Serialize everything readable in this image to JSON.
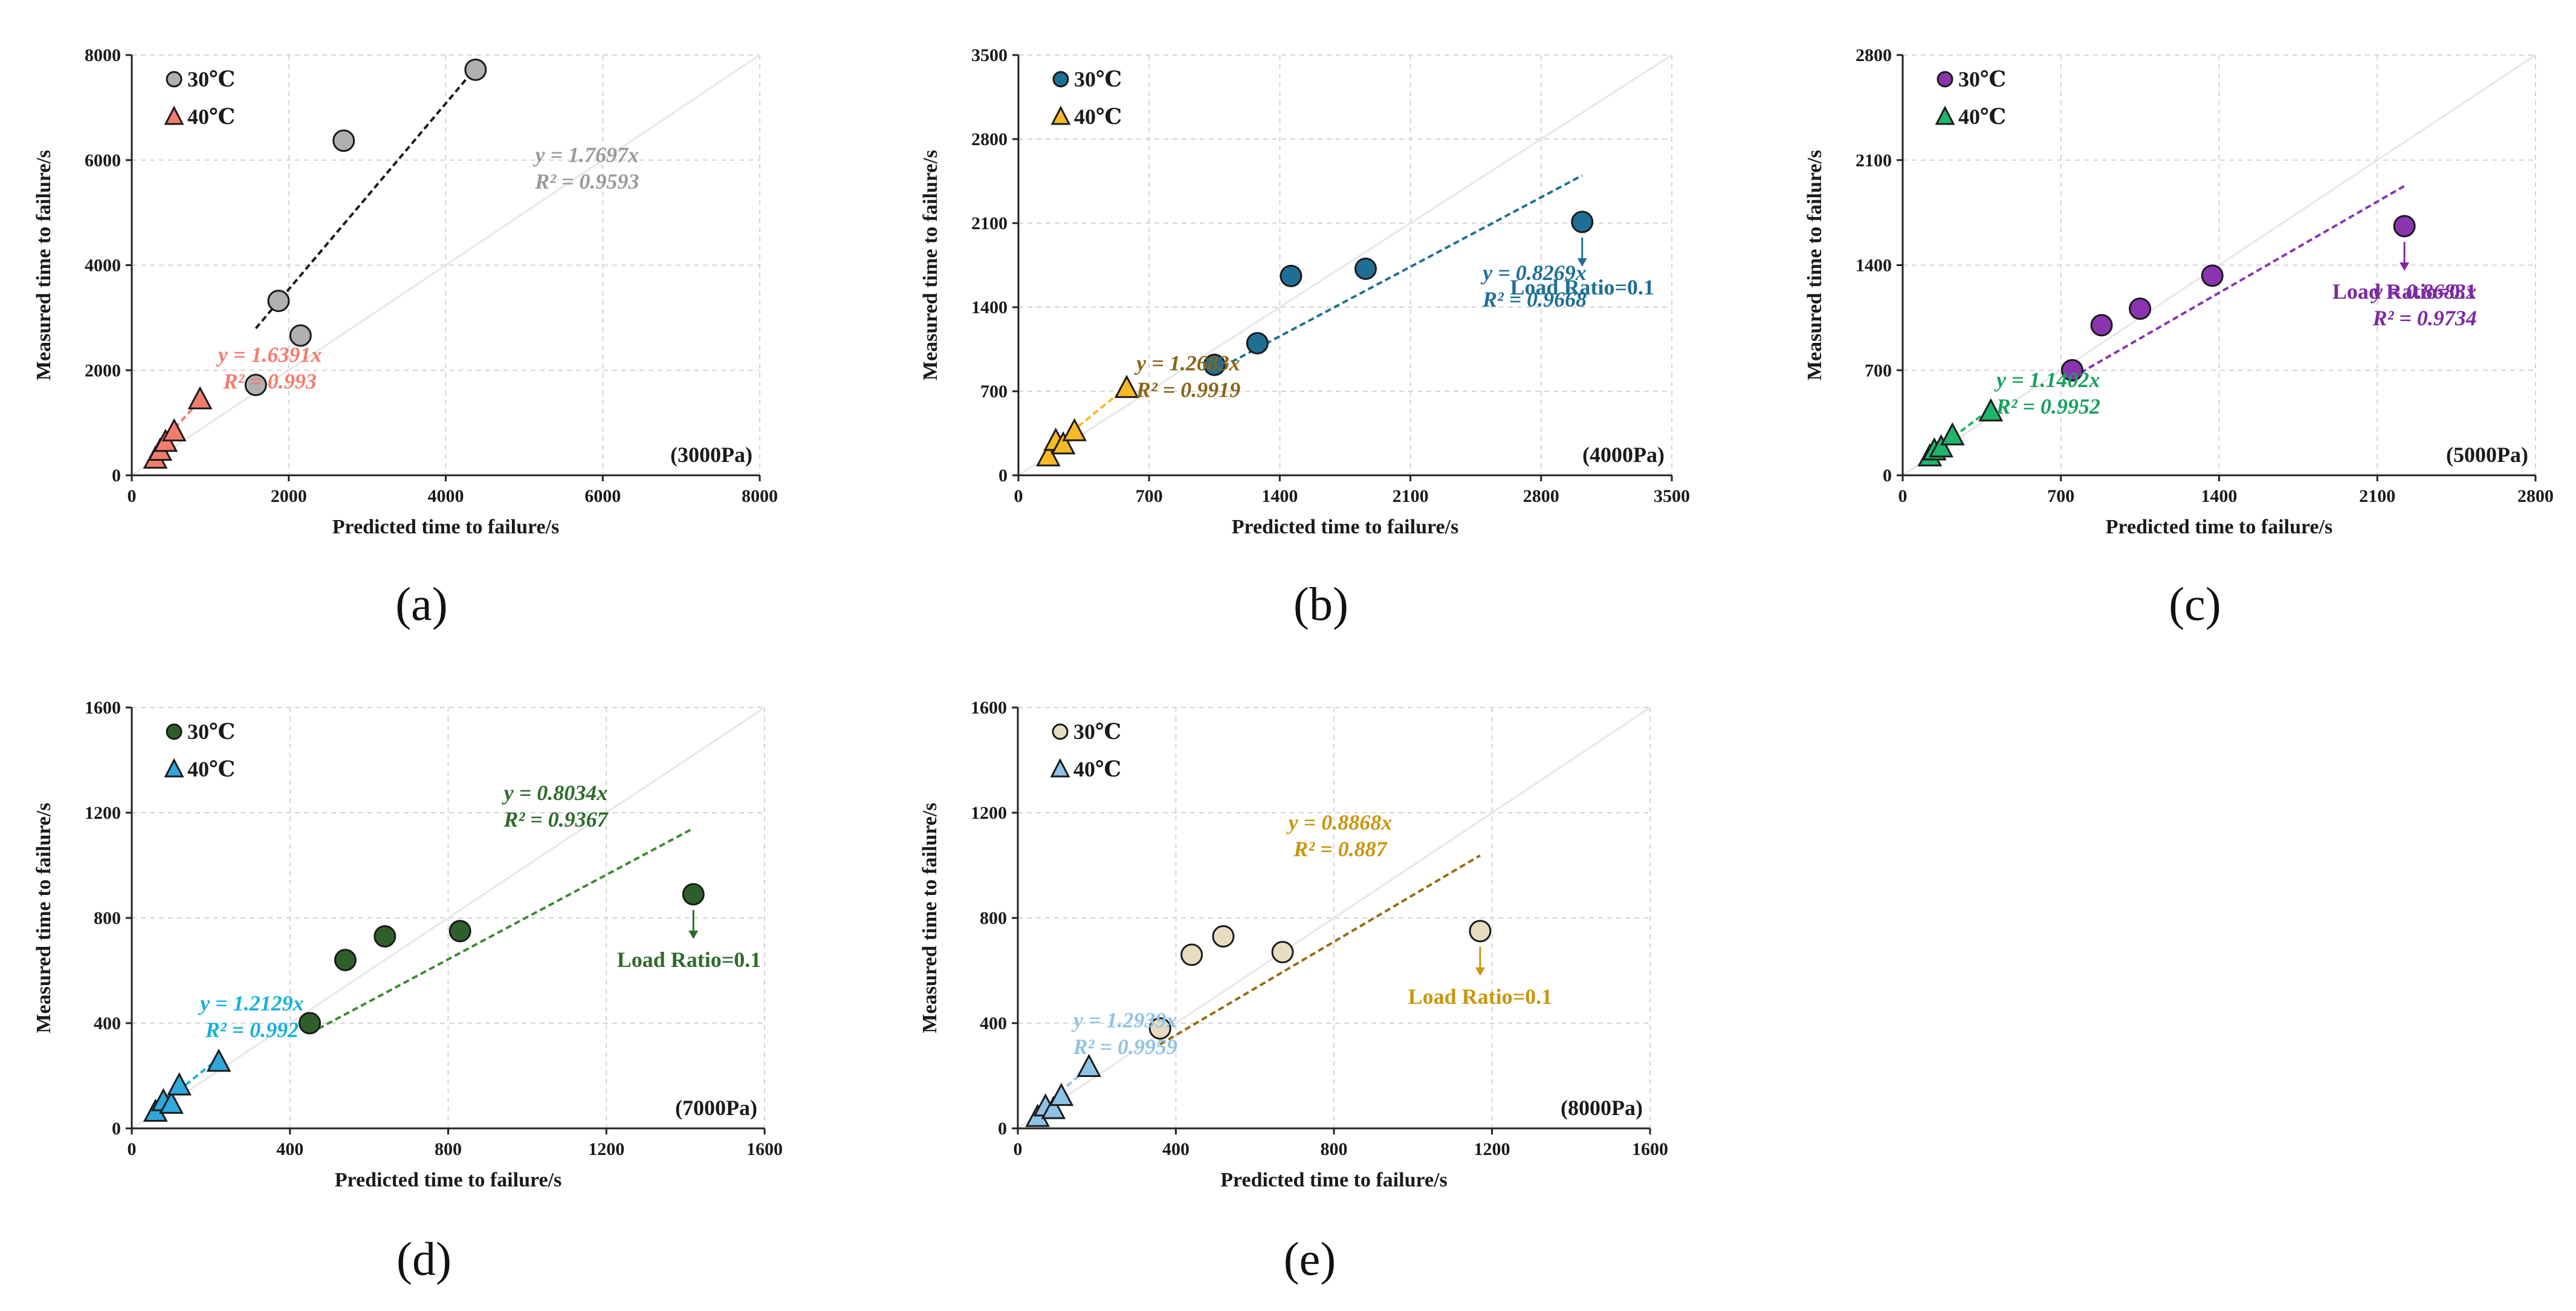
{
  "chart_data": [
    {
      "type": "scatter",
      "panel_label": "a",
      "pressure_label": "(3000Pa)",
      "xlabel": "Predicted time to failure/s",
      "ylabel": "Measured time to failure/s",
      "xlim": [
        0,
        8000
      ],
      "ylim": [
        0,
        8000
      ],
      "xticks": [
        0,
        2000,
        4000,
        6000,
        8000
      ],
      "yticks": [
        0,
        2000,
        4000,
        6000,
        8000
      ],
      "legend_position": "top-left",
      "series": [
        {
          "name": "30℃",
          "marker": "circle",
          "color": "#b0b0b0",
          "points": [
            [
              1580,
              1720
            ],
            [
              1870,
              3320
            ],
            [
              2150,
              2660
            ],
            [
              2700,
              6370
            ],
            [
              4380,
              7720
            ]
          ],
          "fit": {
            "slope": 1.7697,
            "x_range": [
              1580,
              4380
            ],
            "color": "#1a1a1a",
            "equation": "y = 1.7697x",
            "r2": "R² = 0.9593",
            "label_color": "#9a9a9a"
          }
        },
        {
          "name": "40℃",
          "marker": "triangle",
          "color": "#f47c6e",
          "points": [
            [
              300,
              300
            ],
            [
              360,
              450
            ],
            [
              430,
              620
            ],
            [
              540,
              820
            ],
            [
              870,
              1430
            ]
          ],
          "fit": {
            "slope": 1.6391,
            "x_range": [
              300,
              870
            ],
            "color": "#f47c6e",
            "equation": "y = 1.6391x",
            "r2": "R² = 0.993",
            "label_color": "#f47c6e"
          }
        }
      ]
    },
    {
      "type": "scatter",
      "panel_label": "b",
      "pressure_label": "(4000Pa)",
      "xlabel": "Predicted time to failure/s",
      "ylabel": "Measured time to failure/s",
      "xlim": [
        0,
        3500
      ],
      "ylim": [
        0,
        3500
      ],
      "xticks": [
        0,
        700,
        1400,
        2100,
        2800,
        3500
      ],
      "yticks": [
        0,
        700,
        1400,
        2100,
        2800,
        3500
      ],
      "legend_position": "top-left",
      "annotation": {
        "text": "Load Ratio=0.1",
        "x": 3020,
        "y": 2110,
        "color": "#1f6f95"
      },
      "series": [
        {
          "name": "30℃",
          "marker": "circle",
          "color": "#1f6f95",
          "points": [
            [
              1050,
              920
            ],
            [
              1280,
              1100
            ],
            [
              1460,
              1660
            ],
            [
              1860,
              1720
            ],
            [
              3020,
              2110
            ]
          ],
          "fit": {
            "slope": 0.8269,
            "x_range": [
              1050,
              3020
            ],
            "color": "#1f6f95",
            "equation": "y = 0.8269x",
            "r2": "R² = 0.9668",
            "label_color": "#1f6f95"
          }
        },
        {
          "name": "40℃",
          "marker": "triangle",
          "color": "#f7b924",
          "points": [
            [
              160,
              150
            ],
            [
              200,
              280
            ],
            [
              240,
              250
            ],
            [
              300,
              360
            ],
            [
              580,
              720
            ]
          ],
          "fit": {
            "slope": 1.2683,
            "x_range": [
              160,
              580
            ],
            "color": "#f7b924",
            "equation": "y = 1.2683x",
            "r2": "R² = 0.9919",
            "label_color": "#8a6419"
          }
        }
      ]
    },
    {
      "type": "scatter",
      "panel_label": "c",
      "pressure_label": "(5000Pa)",
      "xlabel": "Predicted time to failure/s",
      "ylabel": "Measured time to failure/s",
      "xlim": [
        0,
        2800
      ],
      "ylim": [
        0,
        2800
      ],
      "xticks": [
        0,
        700,
        1400,
        2100,
        2800
      ],
      "yticks": [
        0,
        700,
        1400,
        2100,
        2800
      ],
      "legend_position": "top-left",
      "annotation": {
        "text": "Load Ratio=0.1",
        "x": 2220,
        "y": 1660,
        "color": "#7b2a9f"
      },
      "series": [
        {
          "name": "30℃",
          "marker": "circle",
          "color": "#8a34b0",
          "points": [
            [
              750,
              700
            ],
            [
              880,
              1000
            ],
            [
              1050,
              1110
            ],
            [
              1370,
              1330
            ],
            [
              2220,
              1660
            ]
          ],
          "fit": {
            "slope": 0.8683,
            "x_range": [
              750,
              2220
            ],
            "color": "#8a34b0",
            "equation": "y = 0.8683x",
            "r2": "R² = 0.9734",
            "label_color": "#7b2a9f"
          }
        },
        {
          "name": "40℃",
          "marker": "triangle",
          "color": "#1fb56e",
          "points": [
            [
              120,
              120
            ],
            [
              140,
              160
            ],
            [
              170,
              180
            ],
            [
              220,
              260
            ],
            [
              390,
              420
            ]
          ],
          "fit": {
            "slope": 1.1402,
            "x_range": [
              120,
              390
            ],
            "color": "#1fb56e",
            "equation": "y = 1.1402x",
            "r2": "R² = 0.9952",
            "label_color": "#16a060"
          }
        }
      ]
    },
    {
      "type": "scatter",
      "panel_label": "d",
      "pressure_label": "(7000Pa)",
      "xlabel": "Predicted time to failure/s",
      "ylabel": "Measured time to failure/s",
      "xlim": [
        0,
        1600
      ],
      "ylim": [
        0,
        1600
      ],
      "xticks": [
        0,
        400,
        800,
        1200,
        1600
      ],
      "yticks": [
        0,
        400,
        800,
        1200,
        1600
      ],
      "legend_position": "top-left",
      "annotation": {
        "text": "Load Ratio=0.1",
        "x": 1420,
        "y": 890,
        "color": "#2e6b2a"
      },
      "series": [
        {
          "name": "30℃",
          "marker": "circle",
          "color": "#2e5f2a",
          "points": [
            [
              450,
              400
            ],
            [
              540,
              640
            ],
            [
              640,
              730
            ],
            [
              830,
              750
            ],
            [
              1420,
              890
            ]
          ],
          "fit": {
            "slope": 0.8034,
            "x_range": [
              450,
              1420
            ],
            "color": "#3a8b2e",
            "equation": "y = 0.8034x",
            "r2": "R² = 0.9367",
            "label_color": "#2e6b2a"
          }
        },
        {
          "name": "40℃",
          "marker": "triangle",
          "color": "#2fa8dc",
          "points": [
            [
              60,
              60
            ],
            [
              80,
              100
            ],
            [
              100,
              90
            ],
            [
              120,
              160
            ],
            [
              220,
              250
            ]
          ],
          "fit": {
            "slope": 1.2129,
            "x_range": [
              60,
              220
            ],
            "color": "#17b0dc",
            "equation": "y = 1.2129x",
            "r2": "R² = 0.992",
            "label_color": "#17b0dc"
          }
        }
      ]
    },
    {
      "type": "scatter",
      "panel_label": "e",
      "pressure_label": "(8000Pa)",
      "xlabel": "Predicted time to failure/s",
      "ylabel": "Measured time to failure/s",
      "xlim": [
        0,
        1600
      ],
      "ylim": [
        0,
        1600
      ],
      "xticks": [
        0,
        400,
        800,
        1200,
        1600
      ],
      "yticks": [
        0,
        400,
        800,
        1200,
        1600
      ],
      "legend_position": "top-left",
      "annotation": {
        "text": "Load Ratio=0.1",
        "x": 1170,
        "y": 750,
        "color": "#c9960c"
      },
      "series": [
        {
          "name": "30℃",
          "marker": "circle",
          "color": "#e8dcc0",
          "points": [
            [
              360,
              380
            ],
            [
              440,
              660
            ],
            [
              520,
              730
            ],
            [
              670,
              670
            ],
            [
              1170,
              750
            ]
          ],
          "fit": {
            "slope": 0.8868,
            "x_range": [
              360,
              1170
            ],
            "color": "#9a6a10",
            "equation": "y = 0.8868x",
            "r2": "R² = 0.887",
            "label_color": "#c9960c"
          }
        },
        {
          "name": "40℃",
          "marker": "triangle",
          "color": "#8fc3e6",
          "points": [
            [
              50,
              40
            ],
            [
              70,
              80
            ],
            [
              90,
              70
            ],
            [
              110,
              120
            ],
            [
              180,
              230
            ]
          ],
          "fit": {
            "slope": 1.2939,
            "x_range": [
              50,
              180
            ],
            "color": "#8fc3e6",
            "equation": "y = 1.2939x",
            "r2": "R² = 0.9959",
            "label_color": "#8fc3e6"
          }
        }
      ]
    }
  ]
}
